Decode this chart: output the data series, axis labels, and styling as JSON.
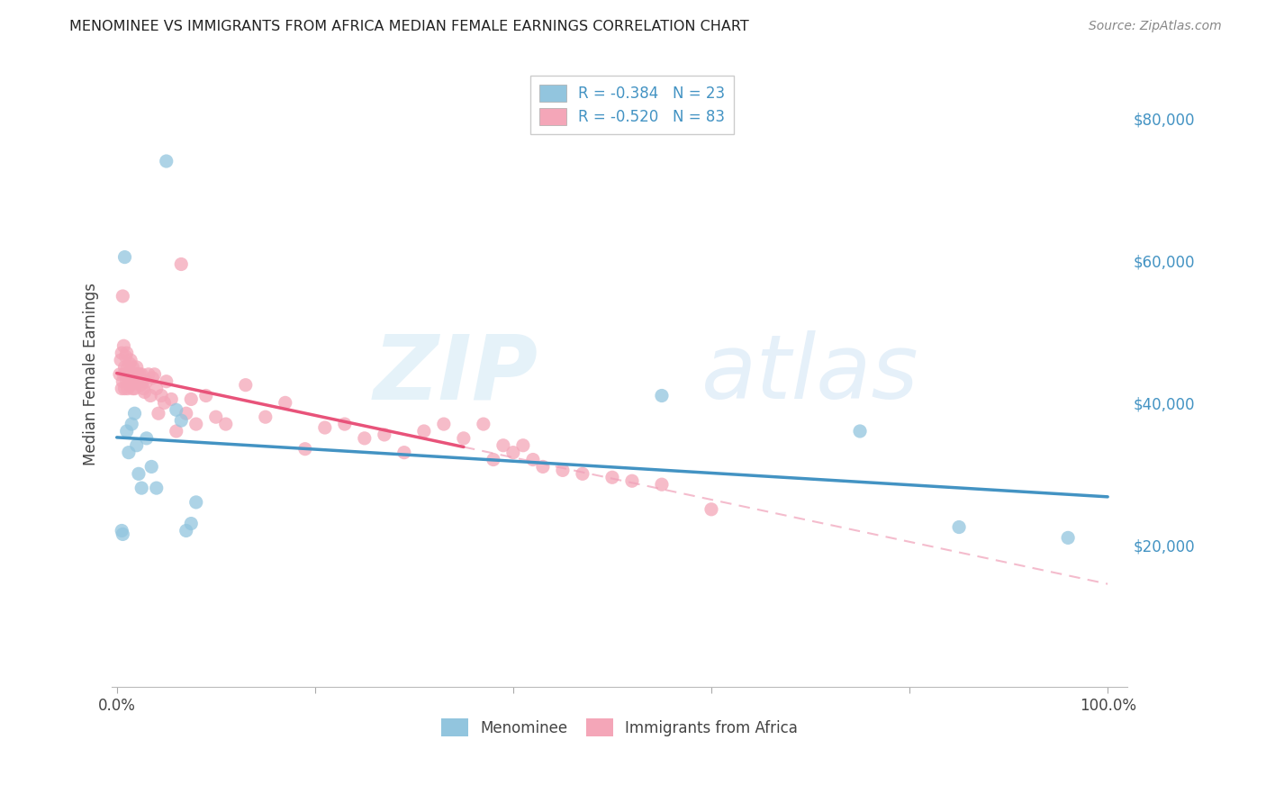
{
  "title": "MENOMINEE VS IMMIGRANTS FROM AFRICA MEDIAN FEMALE EARNINGS CORRELATION CHART",
  "source": "Source: ZipAtlas.com",
  "ylabel": "Median Female Earnings",
  "ylim": [
    0,
    88000
  ],
  "xlim": [
    -0.005,
    1.02
  ],
  "ytick_vals": [
    20000,
    40000,
    60000,
    80000
  ],
  "ytick_labels": [
    "$20,000",
    "$40,000",
    "$60,000",
    "$80,000"
  ],
  "xtick_labels_left": "0.0%",
  "xtick_labels_right": "100.0%",
  "legend_label1": "Menominee",
  "legend_label2": "Immigrants from Africa",
  "legend_r1": "R = -0.384   N = 23",
  "legend_r2": "R = -0.520   N = 83",
  "color_blue": "#92c5de",
  "color_pink": "#f4a6b8",
  "color_blue_line": "#4393c3",
  "color_pink_line": "#e8537a",
  "color_pink_dash": "#f0a0b8",
  "watermark_zip_color": "#cce0f0",
  "watermark_atlas_color": "#b8d8f0",
  "title_fontsize": 11.5,
  "source_fontsize": 10,
  "axis_label_fontsize": 12,
  "tick_fontsize": 12,
  "legend_fontsize": 12,
  "menominee_x": [
    0.005,
    0.006,
    0.008,
    0.01,
    0.012,
    0.015,
    0.018,
    0.02,
    0.022,
    0.025,
    0.03,
    0.035,
    0.04,
    0.05,
    0.06,
    0.065,
    0.07,
    0.075,
    0.08,
    0.55,
    0.75,
    0.85,
    0.96
  ],
  "menominee_y": [
    22000,
    21500,
    60500,
    36000,
    33000,
    37000,
    38500,
    34000,
    30000,
    28000,
    35000,
    31000,
    28000,
    74000,
    39000,
    37500,
    22000,
    23000,
    26000,
    41000,
    36000,
    22500,
    21000
  ],
  "africa_x": [
    0.003,
    0.004,
    0.005,
    0.005,
    0.006,
    0.006,
    0.007,
    0.007,
    0.008,
    0.008,
    0.009,
    0.009,
    0.01,
    0.01,
    0.011,
    0.011,
    0.012,
    0.012,
    0.013,
    0.013,
    0.014,
    0.014,
    0.015,
    0.015,
    0.016,
    0.016,
    0.017,
    0.018,
    0.018,
    0.019,
    0.02,
    0.021,
    0.022,
    0.023,
    0.024,
    0.025,
    0.026,
    0.027,
    0.028,
    0.03,
    0.032,
    0.034,
    0.036,
    0.038,
    0.04,
    0.042,
    0.045,
    0.048,
    0.05,
    0.055,
    0.06,
    0.065,
    0.07,
    0.075,
    0.08,
    0.09,
    0.1,
    0.11,
    0.13,
    0.15,
    0.17,
    0.19,
    0.21,
    0.23,
    0.25,
    0.27,
    0.29,
    0.31,
    0.33,
    0.35,
    0.37,
    0.38,
    0.39,
    0.4,
    0.41,
    0.42,
    0.43,
    0.45,
    0.47,
    0.5,
    0.52,
    0.55,
    0.6
  ],
  "africa_y": [
    44000,
    46000,
    47000,
    42000,
    55000,
    43000,
    44000,
    48000,
    42000,
    45000,
    44000,
    46500,
    43000,
    47000,
    45000,
    42000,
    44000,
    43000,
    45500,
    43000,
    46000,
    42500,
    44000,
    43000,
    45000,
    42000,
    44000,
    43500,
    42000,
    44000,
    45000,
    44000,
    43000,
    44000,
    42500,
    44000,
    43000,
    42000,
    41500,
    43000,
    44000,
    41000,
    43500,
    44000,
    42000,
    38500,
    41000,
    40000,
    43000,
    40500,
    36000,
    59500,
    38500,
    40500,
    37000,
    41000,
    38000,
    37000,
    42500,
    38000,
    40000,
    33500,
    36500,
    37000,
    35000,
    35500,
    33000,
    36000,
    37000,
    35000,
    37000,
    32000,
    34000,
    33000,
    34000,
    32000,
    31000,
    30500,
    30000,
    29500,
    29000,
    28500,
    25000
  ]
}
